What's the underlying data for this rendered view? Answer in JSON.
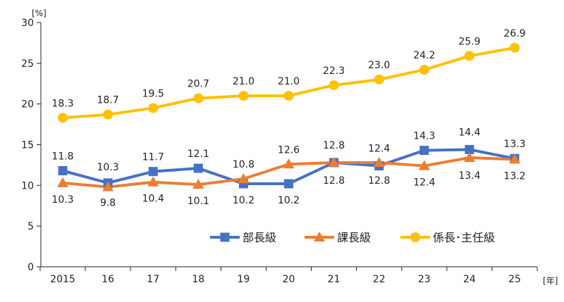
{
  "chart_data": {
    "type": "line",
    "x_unit_label": "[年]",
    "y_unit_label": "[%]",
    "categories": [
      "2015",
      "16",
      "17",
      "18",
      "19",
      "20",
      "21",
      "22",
      "23",
      "24",
      "25"
    ],
    "ylim": [
      0,
      30
    ],
    "yticks": [
      0,
      5,
      10,
      15,
      20,
      25,
      30
    ],
    "grid": false,
    "legend_position": "bottom-right inside plot",
    "series": [
      {
        "name": "部長級",
        "color": "#4472C4",
        "marker": "square",
        "values": [
          11.8,
          10.3,
          11.7,
          12.1,
          10.2,
          10.2,
          12.8,
          12.4,
          14.3,
          14.4,
          13.3
        ],
        "labels": [
          "11.8",
          "10.3",
          "11.7",
          "12.1",
          "10.2",
          "10.2",
          "12.8",
          "12.4",
          "14.3",
          "14.4",
          "13.3"
        ]
      },
      {
        "name": "課長級",
        "color": "#ED7D31",
        "marker": "triangle",
        "values": [
          10.3,
          9.8,
          10.4,
          10.1,
          10.8,
          12.6,
          12.8,
          12.8,
          12.4,
          13.4,
          13.2
        ],
        "labels": [
          "10.3",
          "9.8",
          "10.4",
          "10.1",
          "10.8",
          "12.6",
          "12.8",
          "12.8",
          "12.4",
          "13.4",
          "13.2"
        ]
      },
      {
        "name": "係長･主任級",
        "color": "#FFC000",
        "marker": "circle",
        "values": [
          18.3,
          18.7,
          19.5,
          20.7,
          21.0,
          21.0,
          22.3,
          23.0,
          24.2,
          25.9,
          26.9
        ],
        "labels": [
          "18.3",
          "18.7",
          "19.5",
          "20.7",
          "21.0",
          "21.0",
          "22.3",
          "23.0",
          "24.2",
          "25.9",
          "26.9"
        ]
      }
    ]
  }
}
